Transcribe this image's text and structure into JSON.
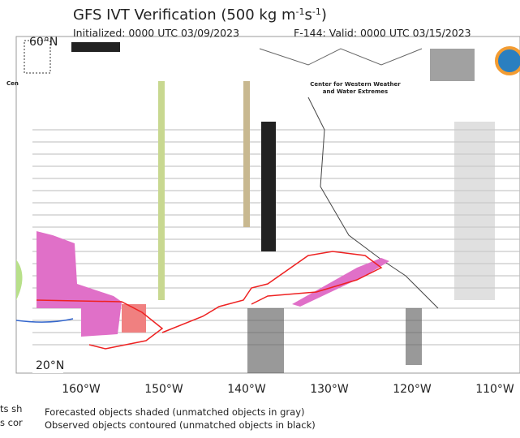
{
  "header": {
    "title_parts": [
      "GFS IVT Verification (500 kg m",
      "-1",
      "s",
      "-1",
      ")"
    ],
    "initialized": "Initialized: 0000 UTC 03/09/2023",
    "valid": "F-144: Valid: 0000 UTC 03/15/2023"
  },
  "map": {
    "lat_labels": [
      "60°N",
      "20°N"
    ],
    "lon_labels": [
      "160°W",
      "150°W",
      "140°W",
      "130°W",
      "120°W",
      "110°W"
    ],
    "logo_text": [
      "Center for Western Weather",
      "and Water Extremes"
    ],
    "logo_fragment": "Cen"
  },
  "legend": {
    "lines": [
      "Forecasted objects shaded (unmatched objects in gray)",
      "Observed objects contoured (unmatched objects in black)"
    ],
    "left_fragments": [
      "ts sh",
      "s cor"
    ]
  }
}
